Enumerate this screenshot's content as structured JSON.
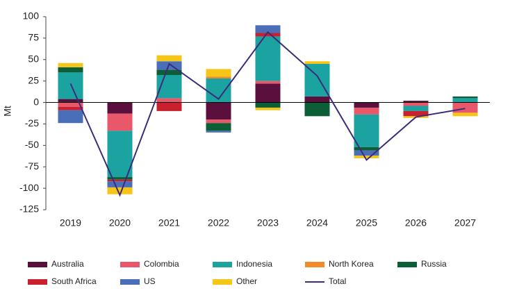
{
  "chart_data": {
    "type": "stacked_bar",
    "y_label": "Mt",
    "categories": [
      "2019",
      "2020",
      "2021",
      "2022",
      "2023",
      "2024",
      "2025",
      "2026",
      "2027"
    ],
    "series": [
      {
        "name": "Australia",
        "color": "#5a0f3c",
        "values": [
          4,
          -13,
          0,
          -20,
          22,
          7,
          -6,
          2,
          0
        ]
      },
      {
        "name": "Colombia",
        "color": "#e8586a",
        "values": [
          -5,
          -20,
          5,
          -4,
          3,
          0,
          -8,
          -4,
          -12
        ]
      },
      {
        "name": "Indonesia",
        "color": "#1aa3a0",
        "values": [
          31,
          -54,
          27,
          28,
          52,
          38,
          -38,
          -6,
          5
        ]
      },
      {
        "name": "North Korea",
        "color": "#f08a2c",
        "values": [
          0,
          0,
          0,
          2,
          0,
          0,
          0,
          0,
          0
        ]
      },
      {
        "name": "Russia",
        "color": "#0b5e36",
        "values": [
          6,
          -3,
          6,
          -9,
          -6,
          -16,
          -4,
          0,
          2
        ]
      },
      {
        "name": "South Africa",
        "color": "#c8202e",
        "values": [
          -4,
          -2,
          -10,
          0,
          4,
          0,
          0,
          -6,
          0
        ]
      },
      {
        "name": "US",
        "color": "#4a6fb8",
        "values": [
          -15,
          -7,
          10,
          -2,
          9,
          0,
          -6,
          0,
          0
        ]
      },
      {
        "name": "Other",
        "color": "#f5c518",
        "values": [
          5,
          -8,
          7,
          9,
          -3,
          3,
          -3,
          -2,
          -4
        ]
      }
    ],
    "line_series": {
      "name": "Total",
      "color": "#3d2b7a",
      "values": [
        22,
        -108,
        45,
        4,
        82,
        31,
        -67,
        -17,
        -7
      ]
    },
    "ylim": [
      -125,
      100
    ],
    "yticks": [
      100,
      75,
      50,
      25,
      0,
      -25,
      -50,
      -75,
      -100,
      -125
    ]
  }
}
